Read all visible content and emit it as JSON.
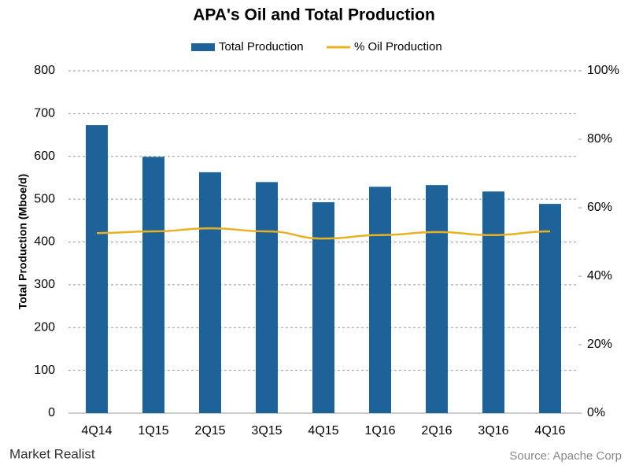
{
  "chart_data": {
    "type": "bar",
    "title": "APA's  Oil and Total Production",
    "categories": [
      "4Q14",
      "1Q15",
      "2Q15",
      "3Q15",
      "4Q15",
      "1Q16",
      "2Q16",
      "3Q16",
      "4Q16"
    ],
    "series": [
      {
        "name": "Total Production",
        "type": "bar",
        "color": "#1d6399",
        "values": [
          673,
          599,
          563,
          540,
          493,
          529,
          533,
          518,
          489
        ]
      },
      {
        "name": "% Oil Production",
        "type": "line",
        "axis": "y2",
        "color": "#e8b023",
        "values": [
          52.6,
          53.1,
          54,
          53.1,
          51,
          52,
          52.9,
          52,
          53.1
        ]
      }
    ],
    "y_label": "Total Production (Mboe/d)",
    "ylim": [
      0,
      800
    ],
    "yticks": [
      0,
      100,
      200,
      300,
      400,
      500,
      600,
      700,
      800
    ],
    "y2lim": [
      0,
      100
    ],
    "y2ticks": [
      {
        "value": 0,
        "label": "0%"
      },
      {
        "value": 20,
        "label": "20%"
      },
      {
        "value": 40,
        "label": "40%"
      },
      {
        "value": 60,
        "label": "60%"
      },
      {
        "value": 80,
        "label": "80%"
      },
      {
        "value": 100,
        "label": "100%"
      }
    ],
    "grid": true,
    "legend": "top",
    "brand": "Market Realist",
    "source": "Source: Apache Corp"
  }
}
